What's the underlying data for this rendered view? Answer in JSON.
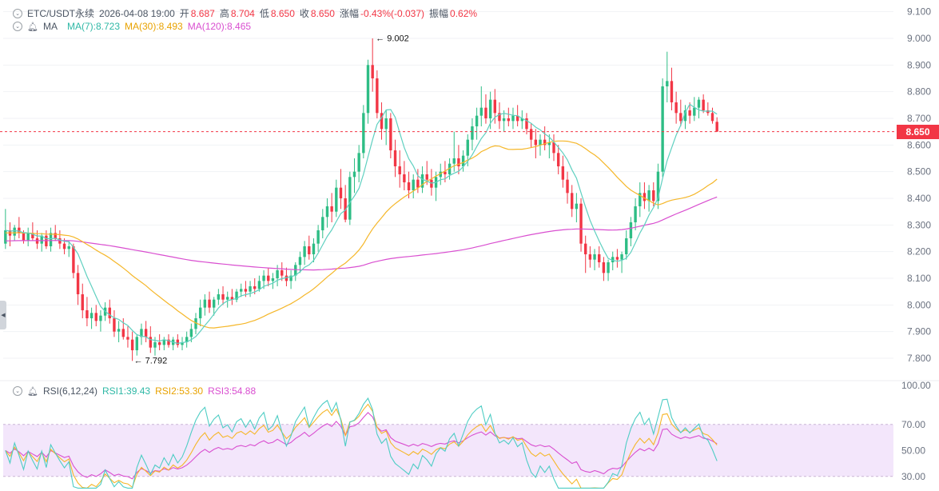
{
  "header": {
    "symbol": "ETC/USDT永续",
    "datetime": "2026-04-08 19:00",
    "open_label": "开",
    "open_value": "8.687",
    "high_label": "高",
    "high_value": "8.704",
    "low_label": "低",
    "low_value": "8.650",
    "close_label": "收",
    "close_value": "8.650",
    "change_label": "涨幅",
    "change_value": "-0.43%(-0.037)",
    "amplitude_label": "振幅",
    "amplitude_value": "0.62%"
  },
  "ma_legend": {
    "name": "MA",
    "ma7": "MA(7):8.723",
    "ma30": "MA(30):8.493",
    "ma120": "MA(120):8.465"
  },
  "rsi_legend": {
    "name": "RSI(6,12,24)",
    "rsi1": "RSI1:39.43",
    "rsi2": "RSI2:53.30",
    "rsi3": "RSI3:54.88"
  },
  "current_price": "8.650",
  "annotations": {
    "high": "9.002",
    "low": "7.792"
  },
  "price_axis_ticks": [
    "9.100",
    "9.000",
    "8.900",
    "8.800",
    "8.700",
    "8.600",
    "8.500",
    "8.400",
    "8.300",
    "8.200",
    "8.100",
    "8.000",
    "7.900",
    "7.800"
  ],
  "rsi_axis_ticks": [
    "100.00",
    "70.00",
    "50.00",
    "30.00"
  ],
  "colors": {
    "up": "#2ebd85",
    "down": "#f23645",
    "ma7": "#5fd0c0",
    "ma30": "#f5b72a",
    "ma120": "#d94fd0",
    "rsi1": "#4ecdc4",
    "rsi2": "#f5b72a",
    "rsi3": "#d94fd0",
    "rsi_band": "#f3e6fb"
  },
  "chart_data": {
    "type": "candlestick",
    "price_range": [
      7.74,
      9.12
    ],
    "rsi_range": [
      20,
      100
    ],
    "candles": [
      [
        8.23,
        8.36,
        8.21,
        8.28
      ],
      [
        8.28,
        8.31,
        8.22,
        8.26
      ],
      [
        8.26,
        8.3,
        8.24,
        8.29
      ],
      [
        8.29,
        8.33,
        8.25,
        8.27
      ],
      [
        8.27,
        8.28,
        8.23,
        8.24
      ],
      [
        8.24,
        8.29,
        8.22,
        8.27
      ],
      [
        8.27,
        8.31,
        8.24,
        8.25
      ],
      [
        8.25,
        8.28,
        8.21,
        8.23
      ],
      [
        8.23,
        8.27,
        8.2,
        8.26
      ],
      [
        8.26,
        8.28,
        8.21,
        8.22
      ],
      [
        8.22,
        8.29,
        8.2,
        8.27
      ],
      [
        8.27,
        8.3,
        8.24,
        8.25
      ],
      [
        8.25,
        8.28,
        8.21,
        8.23
      ],
      [
        8.23,
        8.25,
        8.19,
        8.21
      ],
      [
        8.21,
        8.24,
        8.18,
        8.22
      ],
      [
        8.22,
        8.23,
        8.1,
        8.12
      ],
      [
        8.12,
        8.15,
        8.0,
        8.04
      ],
      [
        8.04,
        8.08,
        7.95,
        7.98
      ],
      [
        7.98,
        8.03,
        7.92,
        7.95
      ],
      [
        7.95,
        7.99,
        7.91,
        7.97
      ],
      [
        7.97,
        8.0,
        7.92,
        7.94
      ],
      [
        7.94,
        7.98,
        7.9,
        7.96
      ],
      [
        7.96,
        8.01,
        7.94,
        7.99
      ],
      [
        7.99,
        8.02,
        7.93,
        7.95
      ],
      [
        7.95,
        7.98,
        7.88,
        7.9
      ],
      [
        7.9,
        7.94,
        7.86,
        7.91
      ],
      [
        7.91,
        7.95,
        7.87,
        7.88
      ],
      [
        7.88,
        7.92,
        7.84,
        7.87
      ],
      [
        7.87,
        7.9,
        7.79,
        7.83
      ],
      [
        7.83,
        7.89,
        7.81,
        7.88
      ],
      [
        7.88,
        7.93,
        7.85,
        7.91
      ],
      [
        7.91,
        7.94,
        7.86,
        7.88
      ],
      [
        7.88,
        7.92,
        7.82,
        7.84
      ],
      [
        7.84,
        7.88,
        7.81,
        7.86
      ],
      [
        7.86,
        7.89,
        7.83,
        7.85
      ],
      [
        7.85,
        7.88,
        7.83,
        7.87
      ],
      [
        7.87,
        7.89,
        7.84,
        7.85
      ],
      [
        7.85,
        7.88,
        7.83,
        7.87
      ],
      [
        7.87,
        7.89,
        7.84,
        7.85
      ],
      [
        7.85,
        7.88,
        7.83,
        7.86
      ],
      [
        7.86,
        7.9,
        7.84,
        7.88
      ],
      [
        7.88,
        7.93,
        7.86,
        7.91
      ],
      [
        7.91,
        7.97,
        7.89,
        7.95
      ],
      [
        7.95,
        8.02,
        7.92,
        7.99
      ],
      [
        7.99,
        8.04,
        7.96,
        8.02
      ],
      [
        8.02,
        8.05,
        7.97,
        7.99
      ],
      [
        7.99,
        8.03,
        7.96,
        8.02
      ],
      [
        8.02,
        8.06,
        8.0,
        8.04
      ],
      [
        8.04,
        8.07,
        8.0,
        8.02
      ],
      [
        8.02,
        8.05,
        7.99,
        8.03
      ],
      [
        8.03,
        8.06,
        8.0,
        8.02
      ],
      [
        8.02,
        8.06,
        8.01,
        8.05
      ],
      [
        8.05,
        8.08,
        8.03,
        8.06
      ],
      [
        8.06,
        8.09,
        8.03,
        8.05
      ],
      [
        8.05,
        8.09,
        8.03,
        8.07
      ],
      [
        8.07,
        8.1,
        8.04,
        8.06
      ],
      [
        8.06,
        8.11,
        8.05,
        8.09
      ],
      [
        8.09,
        8.13,
        8.06,
        8.11
      ],
      [
        8.11,
        8.14,
        8.07,
        8.09
      ],
      [
        8.09,
        8.12,
        8.06,
        8.1
      ],
      [
        8.1,
        8.15,
        8.07,
        8.13
      ],
      [
        8.13,
        8.16,
        8.09,
        8.11
      ],
      [
        8.11,
        8.14,
        8.07,
        8.09
      ],
      [
        8.09,
        8.13,
        8.06,
        8.11
      ],
      [
        8.11,
        8.16,
        8.09,
        8.15
      ],
      [
        8.15,
        8.2,
        8.12,
        8.18
      ],
      [
        8.18,
        8.24,
        8.15,
        8.22
      ],
      [
        8.22,
        8.26,
        8.17,
        8.19
      ],
      [
        8.19,
        8.25,
        8.16,
        8.23
      ],
      [
        8.23,
        8.3,
        8.2,
        8.28
      ],
      [
        8.28,
        8.36,
        8.25,
        8.33
      ],
      [
        8.33,
        8.4,
        8.29,
        8.37
      ],
      [
        8.37,
        8.42,
        8.31,
        8.35
      ],
      [
        8.35,
        8.47,
        8.33,
        8.44
      ],
      [
        8.44,
        8.51,
        8.36,
        8.4
      ],
      [
        8.4,
        8.45,
        8.31,
        8.32
      ],
      [
        8.32,
        8.5,
        8.3,
        8.48
      ],
      [
        8.48,
        8.55,
        8.42,
        8.5
      ],
      [
        8.5,
        8.6,
        8.46,
        8.57
      ],
      [
        8.57,
        8.75,
        8.55,
        8.72
      ],
      [
        8.72,
        8.92,
        8.68,
        8.9
      ],
      [
        8.9,
        9.0,
        8.8,
        8.85
      ],
      [
        8.85,
        8.88,
        8.7,
        8.72
      ],
      [
        8.72,
        8.76,
        8.62,
        8.66
      ],
      [
        8.66,
        8.73,
        8.6,
        8.7
      ],
      [
        8.7,
        8.72,
        8.55,
        8.58
      ],
      [
        8.58,
        8.62,
        8.48,
        8.52
      ],
      [
        8.52,
        8.58,
        8.44,
        8.49
      ],
      [
        8.49,
        8.54,
        8.43,
        8.46
      ],
      [
        8.46,
        8.5,
        8.4,
        8.43
      ],
      [
        8.43,
        8.49,
        8.4,
        8.47
      ],
      [
        8.47,
        8.51,
        8.42,
        8.44
      ],
      [
        8.44,
        8.52,
        8.42,
        8.49
      ],
      [
        8.49,
        8.54,
        8.45,
        8.47
      ],
      [
        8.47,
        8.51,
        8.41,
        8.44
      ],
      [
        8.44,
        8.5,
        8.39,
        8.48
      ],
      [
        8.48,
        8.53,
        8.45,
        8.5
      ],
      [
        8.5,
        8.54,
        8.46,
        8.49
      ],
      [
        8.49,
        8.55,
        8.47,
        8.53
      ],
      [
        8.53,
        8.65,
        8.5,
        8.55
      ],
      [
        8.55,
        8.6,
        8.49,
        8.52
      ],
      [
        8.52,
        8.58,
        8.5,
        8.56
      ],
      [
        8.56,
        8.64,
        8.52,
        8.62
      ],
      [
        8.62,
        8.7,
        8.58,
        8.67
      ],
      [
        8.67,
        8.74,
        8.62,
        8.71
      ],
      [
        8.71,
        8.82,
        8.67,
        8.74
      ],
      [
        8.74,
        8.79,
        8.68,
        8.7
      ],
      [
        8.7,
        8.8,
        8.66,
        8.77
      ],
      [
        8.77,
        8.81,
        8.68,
        8.72
      ],
      [
        8.72,
        8.76,
        8.66,
        8.69
      ],
      [
        8.69,
        8.73,
        8.65,
        8.7
      ],
      [
        8.7,
        8.74,
        8.67,
        8.69
      ],
      [
        8.69,
        8.74,
        8.66,
        8.71
      ],
      [
        8.71,
        8.75,
        8.67,
        8.69
      ],
      [
        8.69,
        8.73,
        8.66,
        8.7
      ],
      [
        8.7,
        8.72,
        8.64,
        8.66
      ],
      [
        8.66,
        8.68,
        8.59,
        8.62
      ],
      [
        8.62,
        8.66,
        8.55,
        8.6
      ],
      [
        8.6,
        8.64,
        8.56,
        8.62
      ],
      [
        8.62,
        8.67,
        8.58,
        8.6
      ],
      [
        8.6,
        8.64,
        8.55,
        8.61
      ],
      [
        8.61,
        8.64,
        8.54,
        8.57
      ],
      [
        8.57,
        8.6,
        8.49,
        8.52
      ],
      [
        8.52,
        8.56,
        8.44,
        8.47
      ],
      [
        8.47,
        8.5,
        8.38,
        8.42
      ],
      [
        8.42,
        8.45,
        8.33,
        8.36
      ],
      [
        8.36,
        8.42,
        8.31,
        8.38
      ],
      [
        8.38,
        8.4,
        8.2,
        8.23
      ],
      [
        8.23,
        8.26,
        8.12,
        8.19
      ],
      [
        8.19,
        8.22,
        8.14,
        8.17
      ],
      [
        8.17,
        8.21,
        8.13,
        8.19
      ],
      [
        8.19,
        8.22,
        8.14,
        8.16
      ],
      [
        8.16,
        8.18,
        8.09,
        8.12
      ],
      [
        8.12,
        8.17,
        8.09,
        8.16
      ],
      [
        8.16,
        8.2,
        8.13,
        8.18
      ],
      [
        8.18,
        8.21,
        8.14,
        8.17
      ],
      [
        8.17,
        8.2,
        8.12,
        8.19
      ],
      [
        8.19,
        8.28,
        8.17,
        8.25
      ],
      [
        8.25,
        8.33,
        8.22,
        8.31
      ],
      [
        8.31,
        8.4,
        8.28,
        8.37
      ],
      [
        8.37,
        8.46,
        8.33,
        8.42
      ],
      [
        8.42,
        8.46,
        8.36,
        8.39
      ],
      [
        8.39,
        8.45,
        8.35,
        8.43
      ],
      [
        8.43,
        8.46,
        8.37,
        8.39
      ],
      [
        8.39,
        8.53,
        8.36,
        8.5
      ],
      [
        8.5,
        8.85,
        8.48,
        8.82
      ],
      [
        8.82,
        8.95,
        8.76,
        8.84
      ],
      [
        8.84,
        8.89,
        8.73,
        8.76
      ],
      [
        8.76,
        8.8,
        8.68,
        8.72
      ],
      [
        8.72,
        8.77,
        8.67,
        8.69
      ],
      [
        8.69,
        8.75,
        8.66,
        8.73
      ],
      [
        8.73,
        8.76,
        8.68,
        8.71
      ],
      [
        8.71,
        8.78,
        8.69,
        8.74
      ],
      [
        8.74,
        8.78,
        8.7,
        8.77
      ],
      [
        8.77,
        8.79,
        8.72,
        8.73
      ],
      [
        8.73,
        8.76,
        8.71,
        8.72
      ],
      [
        8.72,
        8.74,
        8.68,
        8.69
      ],
      [
        8.687,
        8.704,
        8.65,
        8.65
      ]
    ]
  }
}
